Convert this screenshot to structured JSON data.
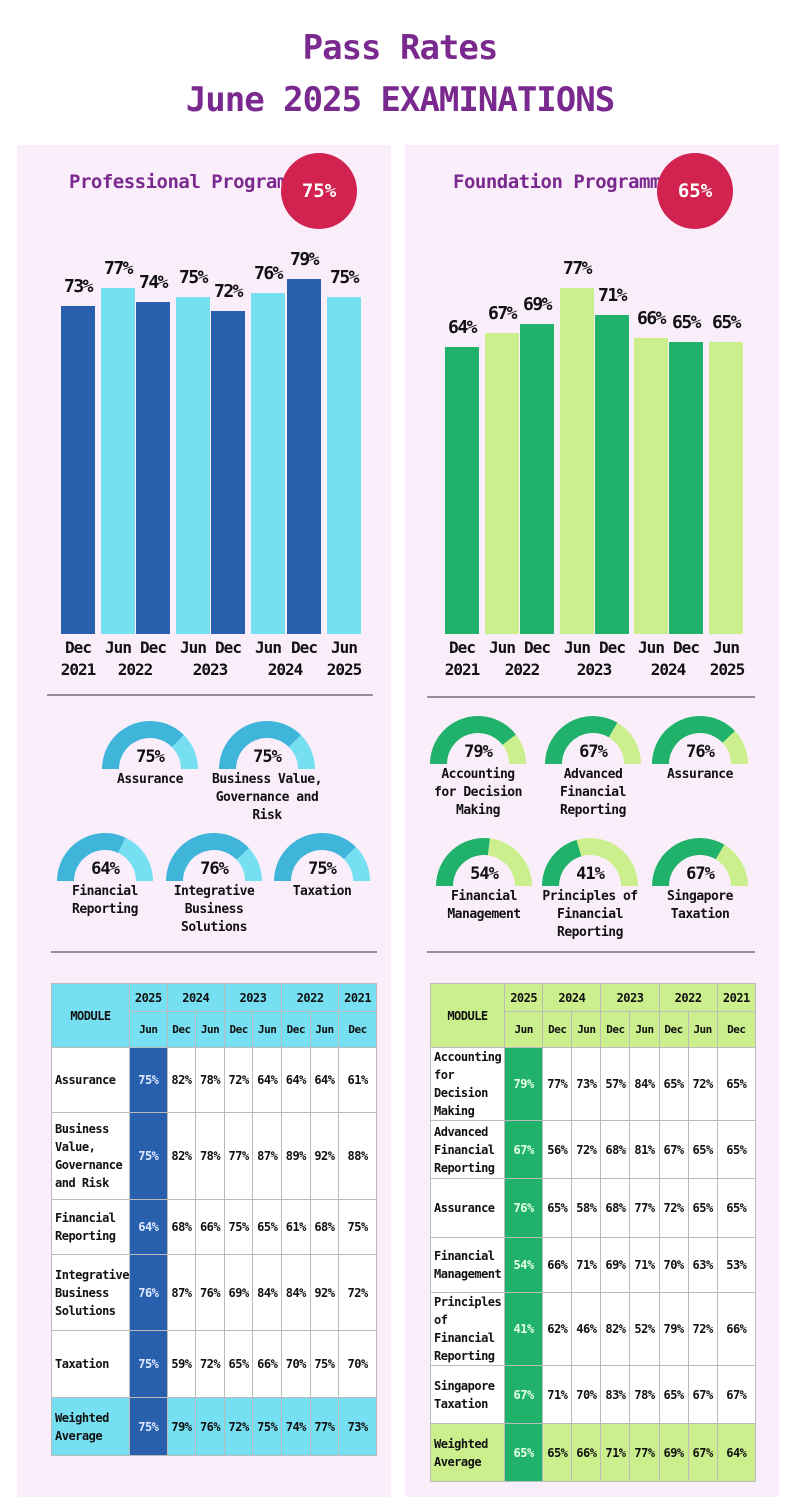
{
  "title_line1": "Pass Rates",
  "title_line2": "June 2025 EXAMINATIONS",
  "colors": {
    "prof_dark": "#2860ae",
    "prof_light": "#76dff2",
    "found_dark": "#20b26a",
    "found_light": "#ccef8e",
    "badge": "#d2224f",
    "title": "#7a2a8e"
  },
  "professional": {
    "title": "Professional Programme",
    "overall": "75%",
    "chart_data": {
      "type": "bar",
      "title": "Professional Programme",
      "categories": [
        "Dec 2021",
        "Jun 2022",
        "Dec 2022",
        "Jun 2023",
        "Dec 2023",
        "Jun 2024",
        "Dec 2024",
        "Jun 2025"
      ],
      "values": [
        73,
        77,
        74,
        75,
        72,
        76,
        79,
        75
      ],
      "labels": [
        "73%",
        "77%",
        "74%",
        "75%",
        "72%",
        "76%",
        "79%",
        "75%"
      ],
      "ylim": [
        0,
        82
      ]
    },
    "x_sessions": [
      "Dec",
      "Jun",
      "Dec",
      "Jun",
      "Dec",
      "Jun",
      "Dec",
      "Jun"
    ],
    "x_years": [
      "2021",
      "2022",
      "2023",
      "2024",
      "2025"
    ],
    "gauges": [
      {
        "label": "Assurance",
        "value": 75,
        "text": "75%"
      },
      {
        "label": "Business Value, Governance and Risk",
        "value": 75,
        "text": "75%"
      },
      {
        "label": "Financial Reporting",
        "value": 64,
        "text": "64%"
      },
      {
        "label": "Integrative Business Solutions",
        "value": 76,
        "text": "76%"
      },
      {
        "label": "Taxation",
        "value": 75,
        "text": "75%"
      }
    ],
    "table": {
      "module_header": "MODULE",
      "years": [
        "2025",
        "2024",
        "2023",
        "2022",
        "2021"
      ],
      "sessions": [
        "Jun",
        "Dec",
        "Jun",
        "Dec",
        "Jun",
        "Dec",
        "Jun",
        "Dec"
      ],
      "rows": [
        {
          "module": "Assurance",
          "values": [
            "75%",
            "82%",
            "78%",
            "72%",
            "64%",
            "64%",
            "64%",
            "61%"
          ]
        },
        {
          "module": "Business Value, Governance and Risk",
          "values": [
            "75%",
            "82%",
            "78%",
            "77%",
            "87%",
            "89%",
            "92%",
            "88%"
          ]
        },
        {
          "module": "Financial Reporting",
          "values": [
            "64%",
            "68%",
            "66%",
            "75%",
            "65%",
            "61%",
            "68%",
            "75%"
          ]
        },
        {
          "module": "Integrative Business Solutions",
          "values": [
            "76%",
            "87%",
            "76%",
            "69%",
            "84%",
            "84%",
            "92%",
            "72%"
          ]
        },
        {
          "module": "Taxation",
          "values": [
            "75%",
            "59%",
            "72%",
            "65%",
            "66%",
            "70%",
            "75%",
            "70%"
          ]
        },
        {
          "module": "Weighted Average",
          "values": [
            "75%",
            "79%",
            "76%",
            "72%",
            "75%",
            "74%",
            "77%",
            "73%"
          ]
        }
      ]
    }
  },
  "foundation": {
    "title": "Foundation Programme",
    "overall": "65%",
    "chart_data": {
      "type": "bar",
      "title": "Foundation Programme",
      "categories": [
        "Dec 2021",
        "Jun 2022",
        "Dec 2022",
        "Jun 2023",
        "Dec 2023",
        "Jun 2024",
        "Dec 2024",
        "Jun 2025"
      ],
      "values": [
        64,
        67,
        69,
        77,
        71,
        66,
        65,
        65
      ],
      "labels": [
        "64%",
        "67%",
        "69%",
        "77%",
        "71%",
        "66%",
        "65%",
        "65%"
      ],
      "ylim": [
        0,
        82
      ]
    },
    "x_sessions": [
      "Dec",
      "Jun",
      "Dec",
      "Jun",
      "Dec",
      "Jun",
      "Dec",
      "Jun"
    ],
    "x_years": [
      "2021",
      "2022",
      "2023",
      "2024",
      "2025"
    ],
    "gauges": [
      {
        "label": "Accounting for Decision Making",
        "value": 79,
        "text": "79%"
      },
      {
        "label": "Advanced Financial Reporting",
        "value": 67,
        "text": "67%"
      },
      {
        "label": "Assurance",
        "value": 76,
        "text": "76%"
      },
      {
        "label": "Financial Management",
        "value": 54,
        "text": "54%"
      },
      {
        "label": "Principles of Financial Reporting",
        "value": 41,
        "text": "41%"
      },
      {
        "label": "Singapore Taxation",
        "value": 67,
        "text": "67%"
      }
    ],
    "table": {
      "module_header": "MODULE",
      "years": [
        "2025",
        "2024",
        "2023",
        "2022",
        "2021"
      ],
      "sessions": [
        "Jun",
        "Dec",
        "Jun",
        "Dec",
        "Jun",
        "Dec",
        "Jun",
        "Dec"
      ],
      "rows": [
        {
          "module": "Accounting for Decision Making",
          "values": [
            "79%",
            "77%",
            "73%",
            "57%",
            "84%",
            "65%",
            "72%",
            "65%"
          ]
        },
        {
          "module": "Advanced Financial Reporting",
          "values": [
            "67%",
            "56%",
            "72%",
            "68%",
            "81%",
            "67%",
            "65%",
            "65%"
          ]
        },
        {
          "module": "Assurance",
          "values": [
            "76%",
            "65%",
            "58%",
            "68%",
            "77%",
            "72%",
            "65%",
            "65%"
          ]
        },
        {
          "module": "Financial Management",
          "values": [
            "54%",
            "66%",
            "71%",
            "69%",
            "71%",
            "70%",
            "63%",
            "53%"
          ]
        },
        {
          "module": "Principles of Financial Reporting",
          "values": [
            "41%",
            "62%",
            "46%",
            "82%",
            "52%",
            "79%",
            "72%",
            "66%"
          ]
        },
        {
          "module": "Singapore Taxation",
          "values": [
            "67%",
            "71%",
            "70%",
            "83%",
            "78%",
            "65%",
            "67%",
            "67%"
          ]
        },
        {
          "module": "Weighted Average",
          "values": [
            "65%",
            "65%",
            "66%",
            "71%",
            "77%",
            "69%",
            "67%",
            "64%"
          ]
        }
      ]
    }
  }
}
